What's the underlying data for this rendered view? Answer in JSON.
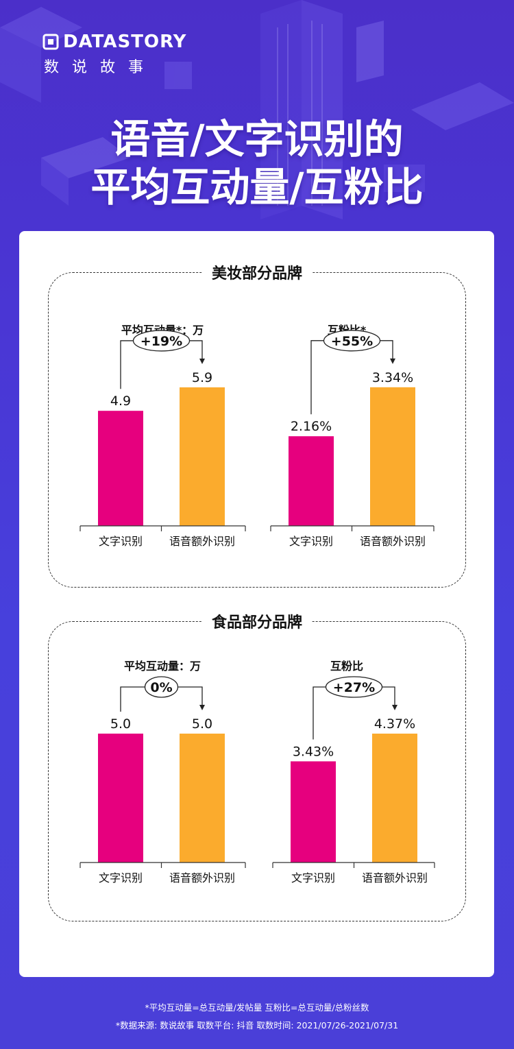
{
  "brand": {
    "name_en": "DATASTORY",
    "name_cn": "数说故事"
  },
  "headline": {
    "line1": "语音/文字识别的",
    "line2": "平均互动量/互粉比"
  },
  "sections": [
    {
      "title": "美妆部分品牌"
    },
    {
      "title": "食品部分品牌"
    }
  ],
  "colors": {
    "text_recognition": "#e6007e",
    "voice_recognition": "#fbab2d"
  },
  "chart_data": [
    {
      "type": "bar",
      "section": "美妆部分品牌",
      "title": "平均互动量*：万",
      "categories": [
        "文字识别",
        "语音额外识别"
      ],
      "values": [
        4.9,
        5.9
      ],
      "labels": [
        "4.9",
        "5.9"
      ],
      "ylim": [
        0,
        7.3
      ],
      "change": "+19%"
    },
    {
      "type": "bar",
      "section": "美妆部分品牌",
      "title": "互粉比*",
      "categories": [
        "文字识别",
        "语音额外识别"
      ],
      "values": [
        2.16,
        3.34
      ],
      "labels": [
        "2.16%",
        "3.34%"
      ],
      "ylim": [
        0,
        4.13
      ],
      "change": "+55%"
    },
    {
      "type": "bar",
      "section": "食品部分品牌",
      "title": "平均互动量：万",
      "categories": [
        "文字识别",
        "语音额外识别"
      ],
      "values": [
        5.0,
        5.0
      ],
      "labels": [
        "5.0",
        "5.0"
      ],
      "ylim": [
        0,
        5.0
      ],
      "change": "0%"
    },
    {
      "type": "bar",
      "section": "食品部分品牌",
      "title": "互粉比",
      "categories": [
        "文字识别",
        "语音额外识别"
      ],
      "values": [
        3.43,
        4.37
      ],
      "labels": [
        "3.43%",
        "4.37%"
      ],
      "ylim": [
        0,
        4.37
      ],
      "change": "+27%"
    }
  ],
  "footer": {
    "line1": "*平均互动量=总互动量/发帖量   互粉比=总互动量/总粉丝数",
    "line2": "*数据来源: 数说故事   取数平台: 抖音   取数时间: 2021/07/26-2021/07/31"
  }
}
